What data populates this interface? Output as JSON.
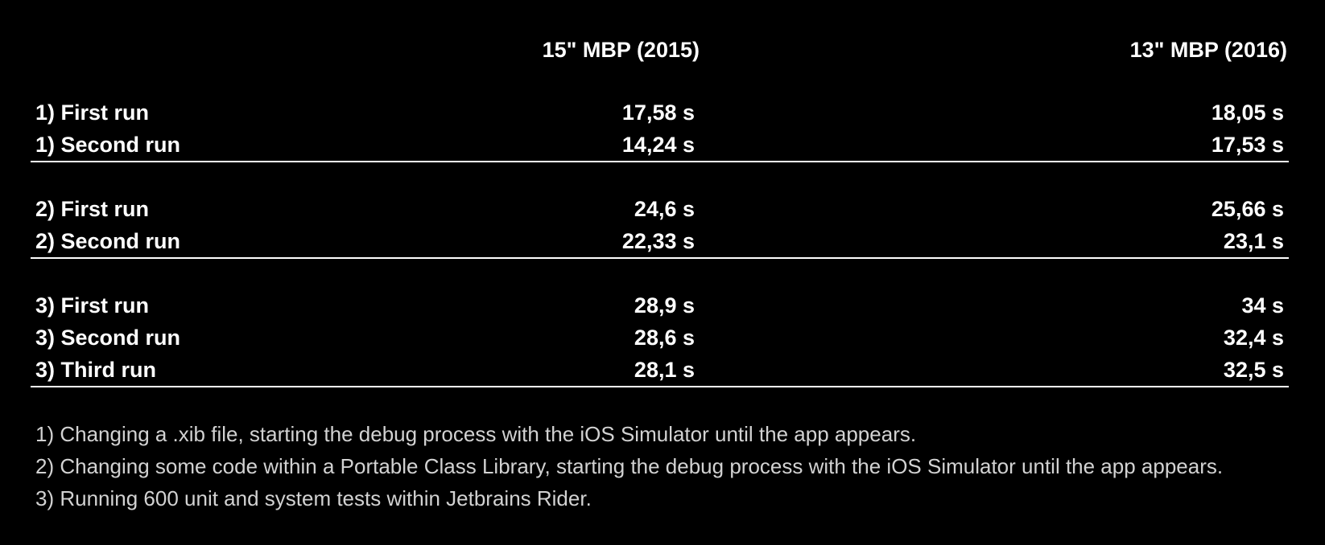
{
  "table": {
    "columns": [
      "15\" MBP (2015)",
      "13\" MBP (2016)"
    ],
    "groups": [
      {
        "rows": [
          {
            "label": "1) First run",
            "mbp2015": "17,58 s",
            "mbp2016": "18,05 s"
          },
          {
            "label": "1) Second run",
            "mbp2015": "14,24 s",
            "mbp2016": "17,53 s"
          }
        ]
      },
      {
        "rows": [
          {
            "label": "2) First run",
            "mbp2015": "24,6 s",
            "mbp2016": "25,66 s"
          },
          {
            "label": "2) Second run",
            "mbp2015": "22,33 s",
            "mbp2016": "23,1 s"
          }
        ]
      },
      {
        "rows": [
          {
            "label": "3) First run",
            "mbp2015": "28,9 s",
            "mbp2016": "34 s"
          },
          {
            "label": "3) Second run",
            "mbp2015": "28,6 s",
            "mbp2016": "32,4 s"
          },
          {
            "label": "3) Third run",
            "mbp2015": "28,1 s",
            "mbp2016": "32,5 s"
          }
        ]
      }
    ]
  },
  "footnotes": [
    "1) Changing a .xib file, starting the debug process with the iOS Simulator until the app appears.",
    "2) Changing some code within a Portable Class Library, starting the debug process with the iOS Simulator until the app appears.",
    "3) Running 600 unit and system tests within Jetbrains Rider."
  ],
  "colors": {
    "background": "#000000",
    "text": "#ffffff",
    "footnote_text": "#d2d2d2"
  }
}
